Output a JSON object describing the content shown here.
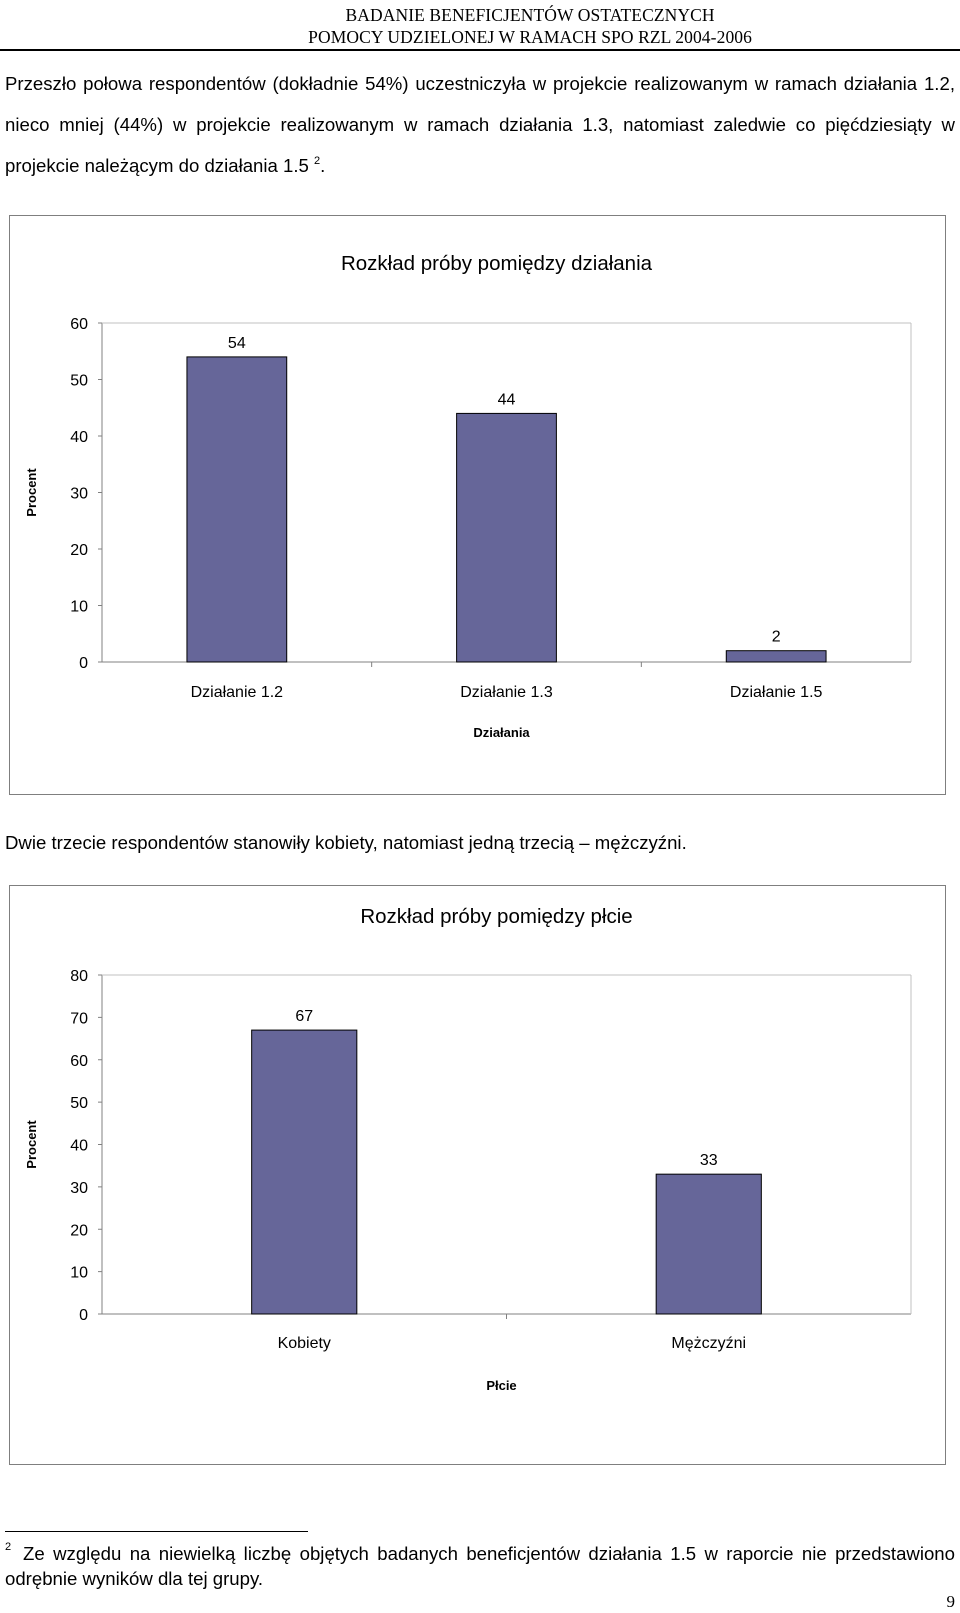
{
  "header": {
    "line1": "BADANIE BENEFICJENTÓW OSTATECZNYCH",
    "line2": "POMOCY UDZIELONEJ W RAMACH SPO RZL 2004-2006"
  },
  "paragraph1": {
    "text": "Przeszło połowa respondentów (dokładnie 54%) uczestniczyła w projekcie realizowanym w ramach działania 1.2, nieco mniej (44%) w projekcie realizowanym w ramach działania 1.3, natomiast zaledwie co pięćdziesiąty w projekcie należącym do działania 1.5",
    "footnote_ref": "2",
    "end": "."
  },
  "paragraph2": {
    "text": "Dwie trzecie respondentów stanowiły kobiety, natomiast jedną trzecią – mężczyźni."
  },
  "chart_data": [
    {
      "type": "bar",
      "title": "Rozkład próby pomiędzy działania",
      "xlabel": "Działania",
      "ylabel": "Procent",
      "categories": [
        "Działanie 1.2",
        "Działanie 1.3",
        "Działanie 1.5"
      ],
      "values": [
        54,
        44,
        2
      ],
      "data_labels": [
        "54",
        "44",
        "2"
      ],
      "ylim": [
        0,
        60
      ],
      "yticks": [
        "0",
        "10",
        "20",
        "30",
        "40",
        "50",
        "60"
      ],
      "bar_color": "#666699",
      "grid": false,
      "legend": "none"
    },
    {
      "type": "bar",
      "title": "Rozkład próby pomiędzy płcie",
      "xlabel": "Płcie",
      "ylabel": "Procent",
      "categories": [
        "Kobiety",
        "Mężczyźni"
      ],
      "values": [
        67,
        33
      ],
      "data_labels": [
        "67",
        "33"
      ],
      "ylim": [
        0,
        80
      ],
      "yticks": [
        "0",
        "10",
        "20",
        "30",
        "40",
        "50",
        "60",
        "70",
        "80"
      ],
      "bar_color": "#666699",
      "grid": false,
      "legend": "none"
    }
  ],
  "footnote": {
    "number": "2",
    "text": "Ze względu na niewielką liczbę objętych badanych beneficjentów działania 1.5 w raporcie nie przedstawiono odrębnie wyników dla tej grupy."
  },
  "page_number": "9"
}
